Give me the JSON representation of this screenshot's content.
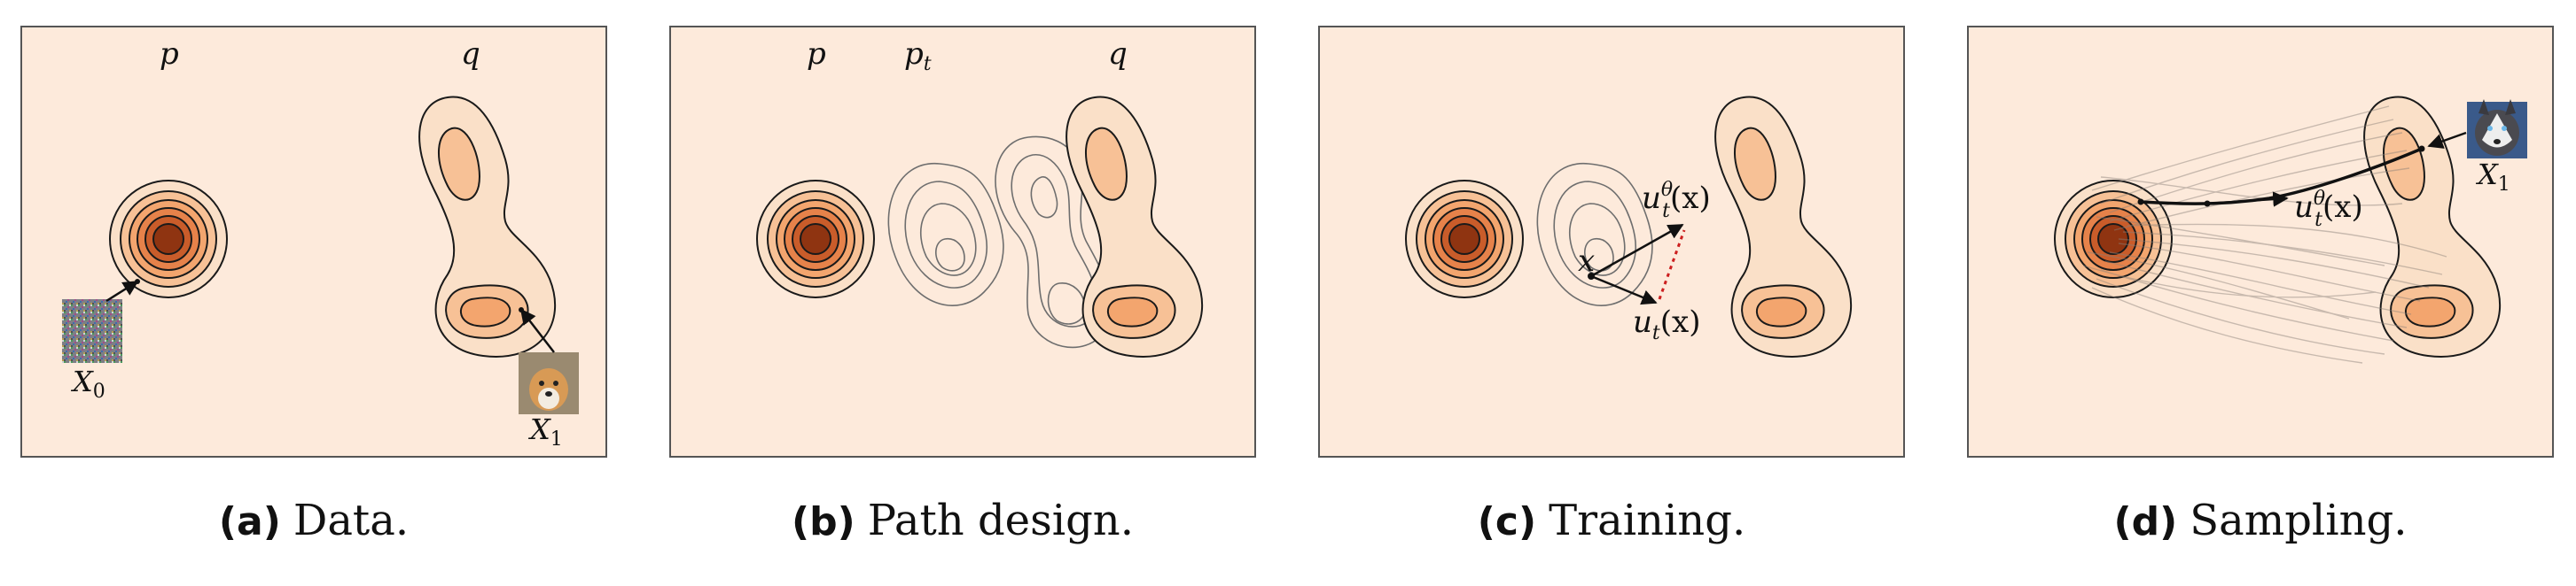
{
  "panels": [
    {
      "id": "a",
      "caption_tag": "(a)",
      "caption_text": "Data.",
      "labels": {
        "p": "p",
        "q": "q",
        "x0": "X",
        "x0_sub": "0",
        "x1": "X",
        "x1_sub": "1"
      }
    },
    {
      "id": "b",
      "caption_tag": "(b)",
      "caption_text": "Path design.",
      "labels": {
        "p": "p",
        "pt": "p",
        "pt_sub": "t",
        "q": "q"
      }
    },
    {
      "id": "c",
      "caption_tag": "(c)",
      "caption_text": "Training.",
      "labels": {
        "x": "x",
        "utheta": "u",
        "utheta_sup": "θ",
        "utheta_sub": "t",
        "utheta_arg": "(x)",
        "ut": "u",
        "ut_sub": "t",
        "ut_arg": "(x)"
      }
    },
    {
      "id": "d",
      "caption_tag": "(d)",
      "caption_text": "Sampling.",
      "labels": {
        "utheta": "u",
        "utheta_sup": "θ",
        "utheta_sub": "t",
        "utheta_arg": "(x)",
        "x1": "X",
        "x1_sub": "1"
      }
    }
  ],
  "colors": {
    "panel_bg": "#fdeadb",
    "frame": "#555555",
    "density_levels": [
      "#f9d8bb",
      "#f7c196",
      "#f3a56e",
      "#e6824a",
      "#c95c2a",
      "#8f3411"
    ],
    "dashed_arrow": "#cc1f1f",
    "contour_gray": "#6e6e6e"
  }
}
